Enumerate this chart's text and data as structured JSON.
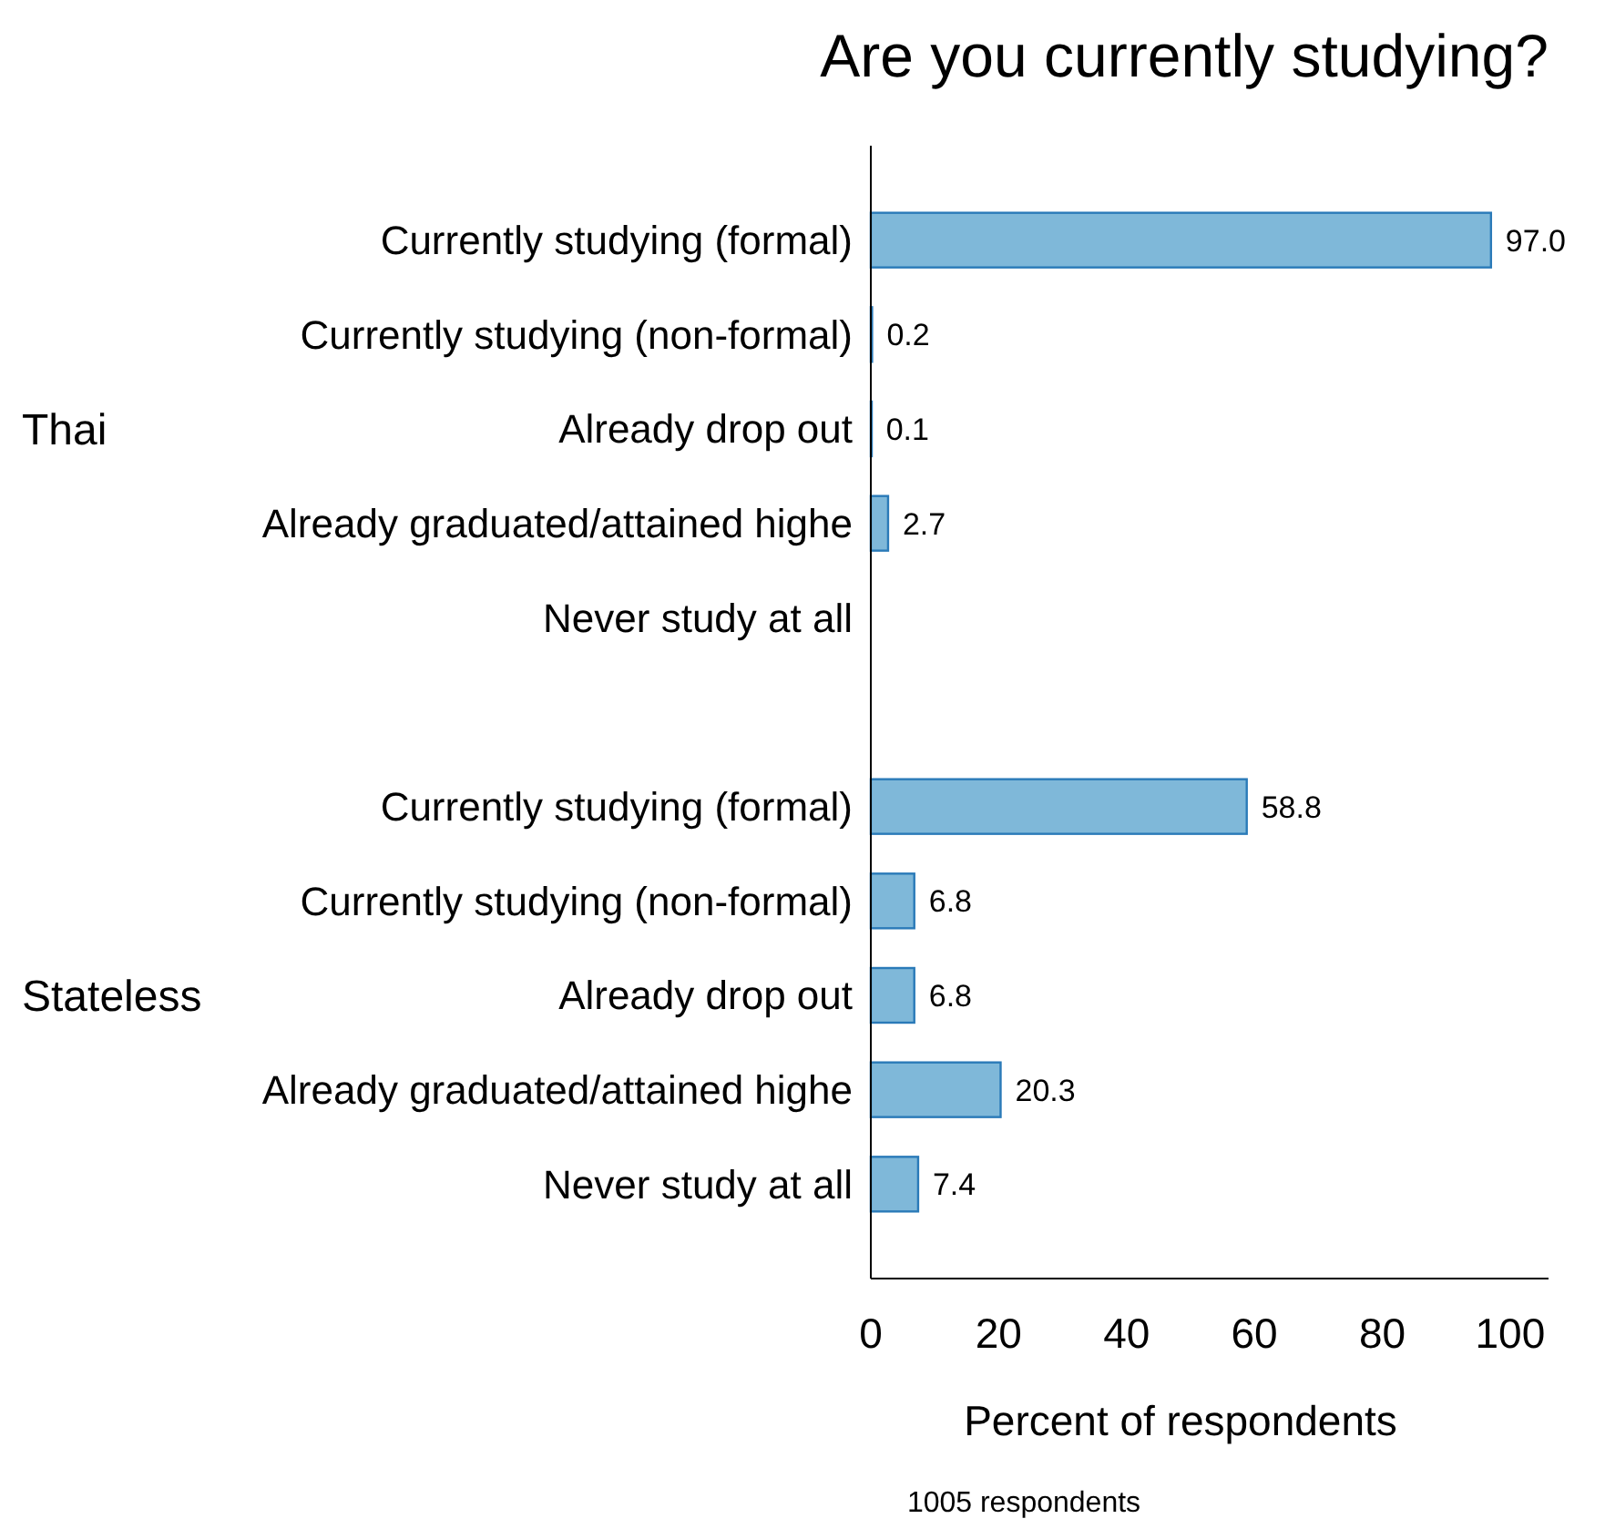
{
  "chart_data": {
    "type": "bar",
    "orientation": "horizontal",
    "title": "Are you currently studying?",
    "xlabel": "Percent of respondents",
    "categories": [
      "Currently studying (formal)",
      "Currently studying (non-formal)",
      "Already drop out",
      "Already graduated/attained highe",
      "Never study at all",
      null,
      "Currently studying (formal)",
      "Currently studying (non-formal)",
      "Already drop out",
      "Already graduated/attained highe",
      "Never study at all"
    ],
    "series": [
      {
        "color": "#7fb8d9",
        "values": [
          97.0,
          0.2,
          0.1,
          2.7,
          null,
          null,
          58.8,
          6.8,
          6.8,
          20.3,
          7.4
        ],
        "value_labels": [
          "97.0",
          "0.2",
          "0.1",
          "2.7",
          null,
          null,
          "58.8",
          "6.8",
          "6.8",
          "20.3",
          "7.4"
        ]
      }
    ],
    "xlim": [
      0,
      106
    ],
    "xticks": [
      0,
      20,
      40,
      60,
      80,
      100
    ],
    "grid": false,
    "annotations": [
      "Thai",
      "Stateless",
      "1005 respondents"
    ]
  }
}
